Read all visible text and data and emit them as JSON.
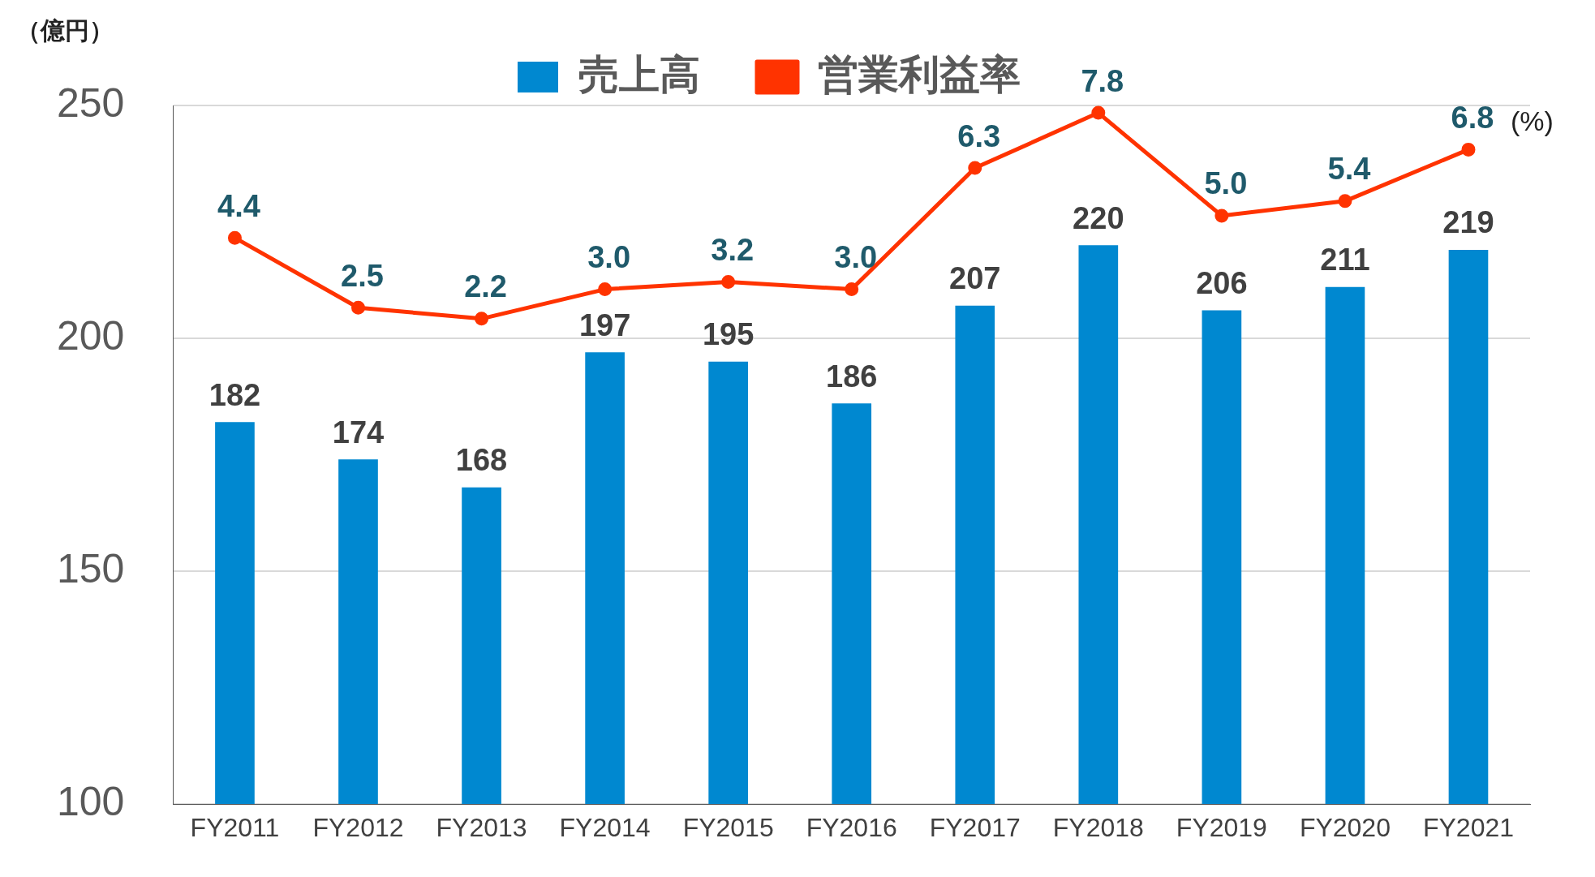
{
  "chart_data": {
    "type": "bar",
    "ylabel": "（億円）",
    "categories": [
      "FY2011",
      "FY2012",
      "FY2013",
      "FY2014",
      "FY2015",
      "FY2016",
      "FY2017",
      "FY2018",
      "FY2019",
      "FY2020",
      "FY2021"
    ],
    "series": [
      {
        "name": "売上高",
        "color": "#0088d0",
        "values": [
          182,
          174,
          168,
          197,
          195,
          186,
          207,
          220,
          206,
          211,
          219
        ],
        "value_labels": [
          "182",
          "174",
          "168",
          "197",
          "195",
          "186",
          "207",
          "220",
          "206",
          "211",
          "219"
        ]
      },
      {
        "name": "営業利益率",
        "type": "line",
        "axis": "y2",
        "color": "#ff3300",
        "marker": "circle",
        "values": [
          4.4,
          2.5,
          2.2,
          3.0,
          3.2,
          3.0,
          6.3,
          7.8,
          5.0,
          5.4,
          6.8
        ],
        "value_labels": [
          "4.4",
          "2.5",
          "2.2",
          "3.0",
          "3.2",
          "3.0",
          "6.3",
          "7.8",
          "5.0",
          "5.4",
          "6.8"
        ]
      }
    ],
    "ylim": [
      100,
      250
    ],
    "yticks": [
      100,
      150,
      200,
      250
    ],
    "y2lim": [
      -11,
      8
    ],
    "grid": "y",
    "legend": "top",
    "annotations": [
      "(%)"
    ]
  }
}
